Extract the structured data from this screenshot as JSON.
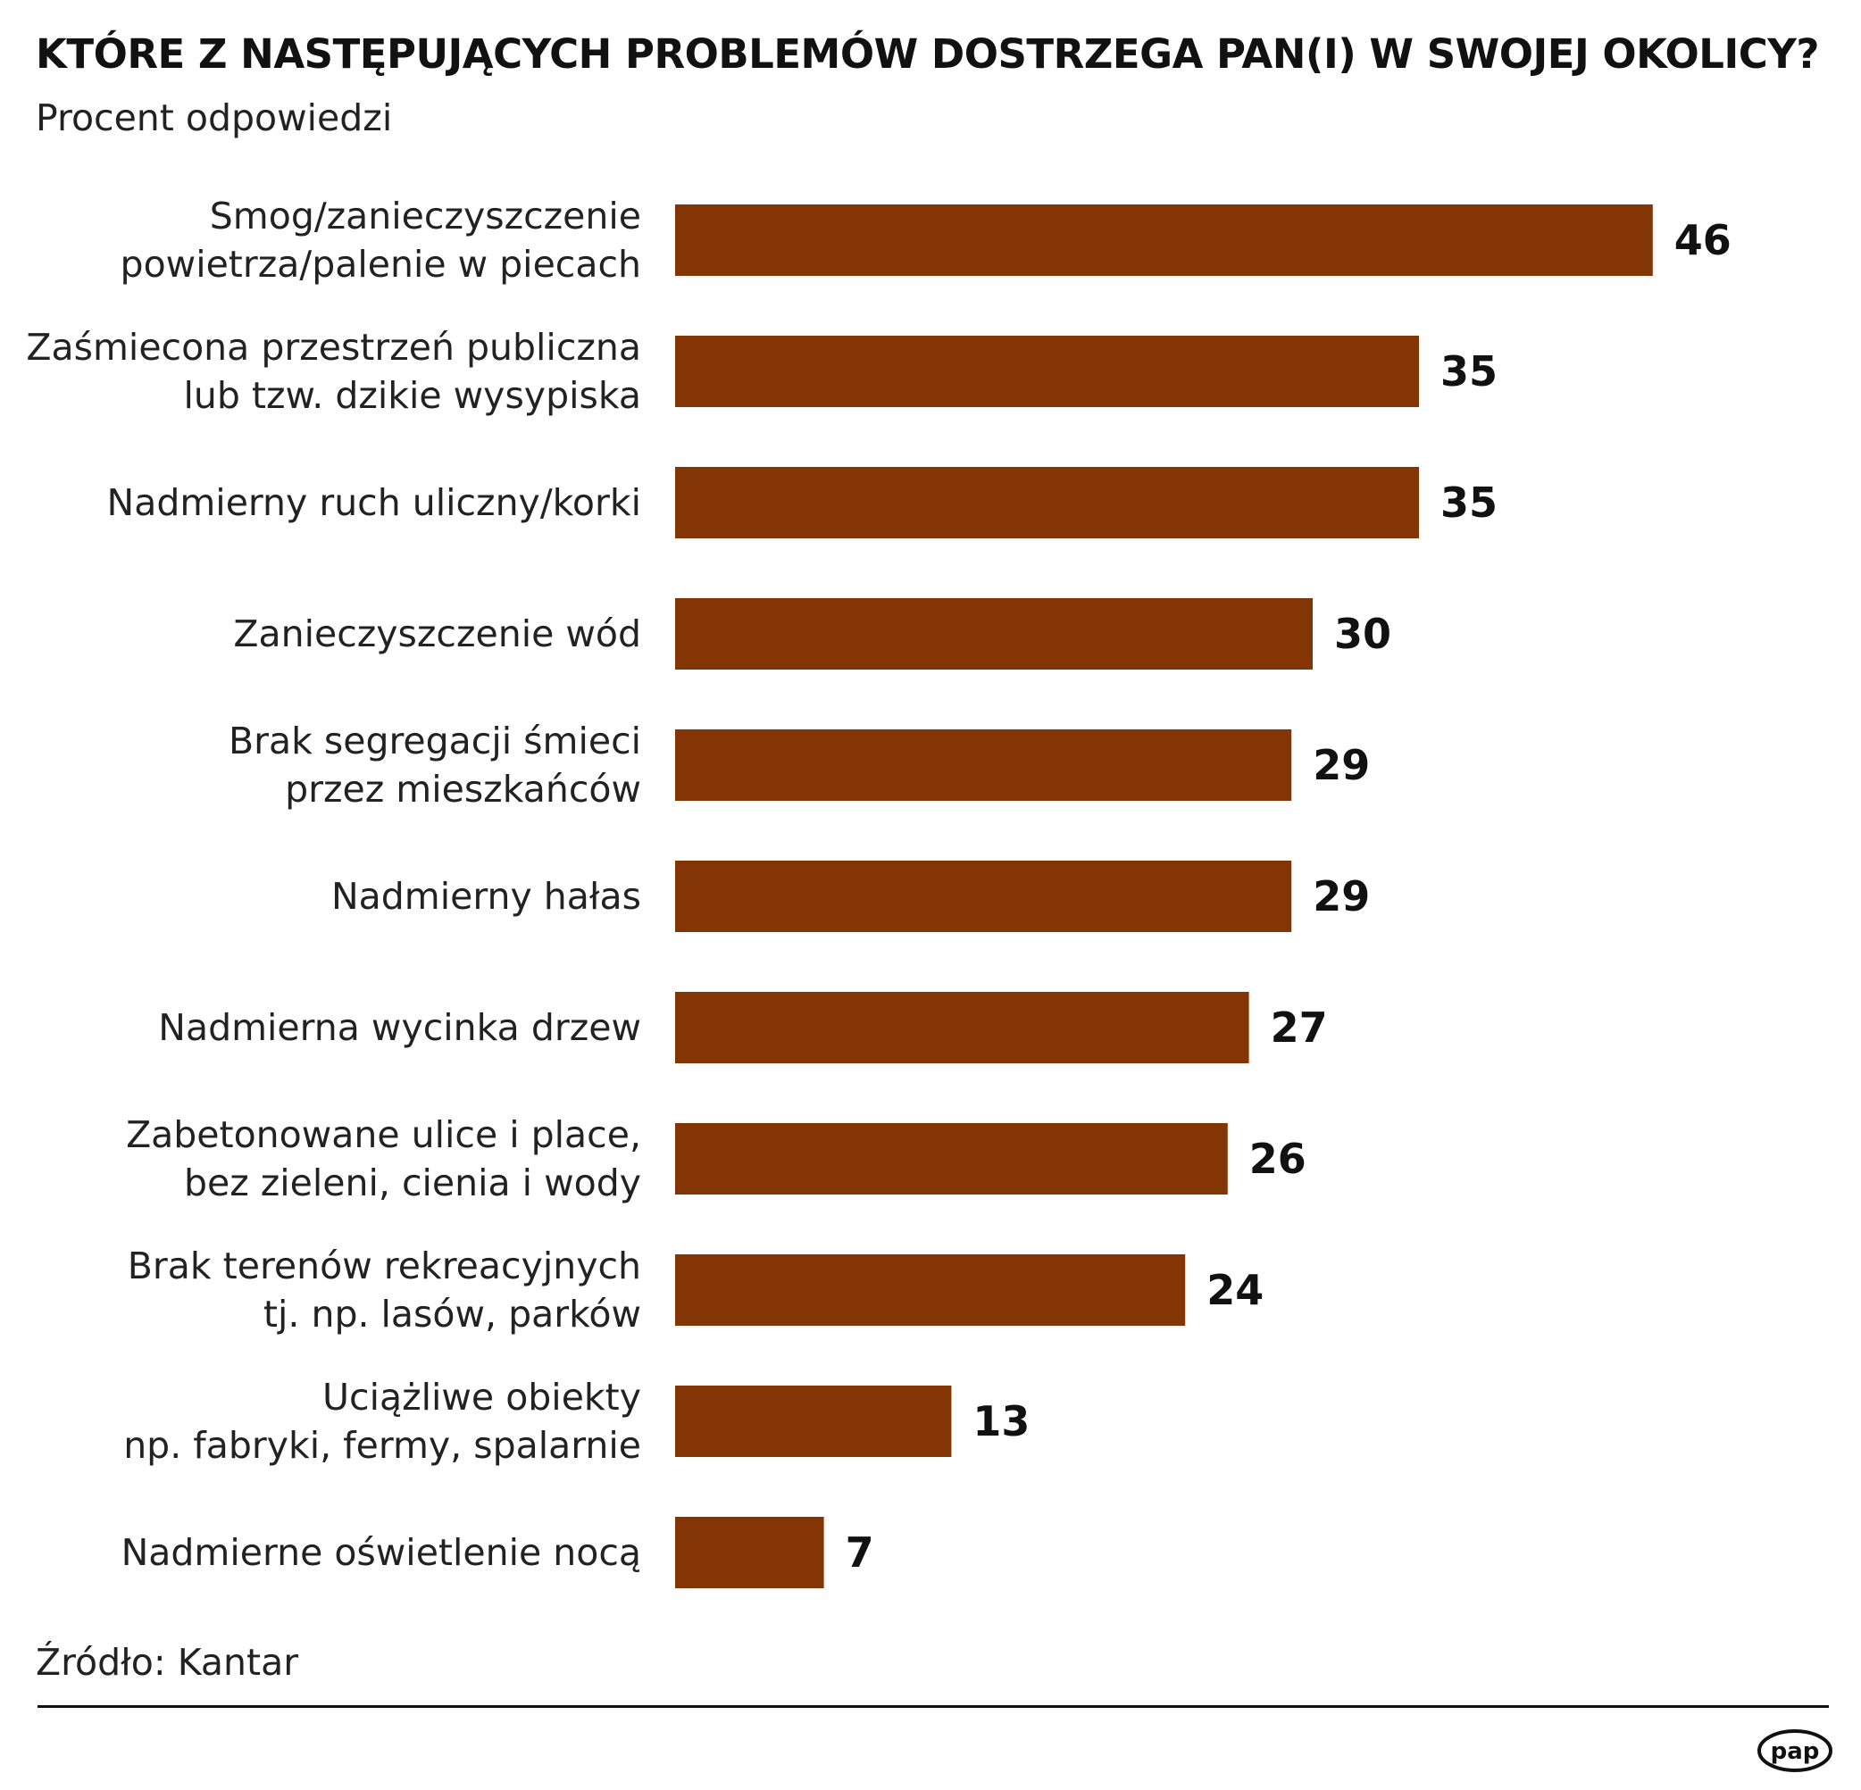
{
  "chart_data": {
    "type": "bar",
    "orientation": "horizontal",
    "title": "KTÓRE Z NASTĘPUJĄCYCH PROBLEMÓW DOSTRZEGA PAN(I) W SWOJEJ OKOLICY?",
    "subtitle": "Procent odpowiedzi",
    "categories": [
      [
        "Smog/zanieczyszczenie",
        "powietrza/palenie w piecach"
      ],
      [
        "Zaśmiecona przestrzeń publiczna",
        "lub tzw. dzikie wysypiska"
      ],
      [
        "Nadmierny ruch uliczny/korki"
      ],
      [
        "Zanieczyszczenie wód"
      ],
      [
        "Brak segregacji śmieci",
        "przez mieszkańców"
      ],
      [
        "Nadmierny hałas"
      ],
      [
        "Nadmierna wycinka drzew"
      ],
      [
        "Zabetonowane ulice i place,",
        "bez zieleni, cienia i wody"
      ],
      [
        "Brak terenów rekreacyjnych",
        "tj. np. lasów, parków"
      ],
      [
        "Uciążliwe obiekty",
        "np. fabryki, fermy, spalarnie"
      ],
      [
        "Nadmierne oświetlenie nocą"
      ]
    ],
    "values": [
      46,
      35,
      35,
      30,
      29,
      29,
      27,
      26,
      24,
      13,
      7
    ],
    "bar_color": "#843506",
    "data_labels": true,
    "grid": false,
    "legend": "none",
    "source": "Źródło: Kantar"
  },
  "logo": {
    "text": "pap"
  }
}
